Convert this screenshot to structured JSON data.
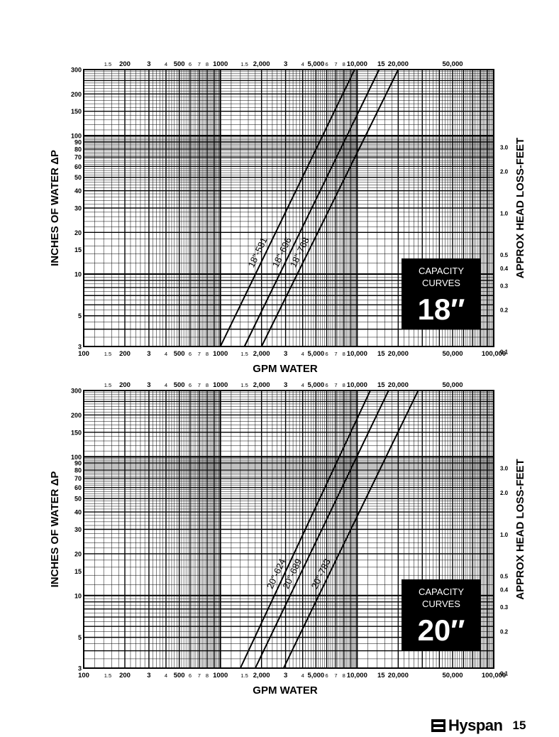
{
  "chart_data": [
    {
      "type": "line",
      "x_scale": "log",
      "y_scale": "log",
      "xlim": [
        100,
        100000
      ],
      "ylim": [
        3,
        300
      ],
      "xlabel": "GPM WATER",
      "ylabel": "INCHES OF WATER ΔP",
      "ylabel_right": "APPROX HEAD LOSS-FEET",
      "grid": true,
      "x_ticks": [
        {
          "v": 100,
          "t": "100"
        },
        {
          "v": 150,
          "t": "1.5"
        },
        {
          "v": 200,
          "t": "200"
        },
        {
          "v": 300,
          "t": "3"
        },
        {
          "v": 400,
          "t": "4"
        },
        {
          "v": 500,
          "t": "500"
        },
        {
          "v": 600,
          "t": "6"
        },
        {
          "v": 700,
          "t": "7"
        },
        {
          "v": 800,
          "t": "8"
        },
        {
          "v": 1000,
          "t": "1000"
        },
        {
          "v": 1500,
          "t": "1.5"
        },
        {
          "v": 2000,
          "t": "2,000"
        },
        {
          "v": 3000,
          "t": "3"
        },
        {
          "v": 4000,
          "t": "4"
        },
        {
          "v": 5000,
          "t": "5,000"
        },
        {
          "v": 6000,
          "t": "6"
        },
        {
          "v": 7000,
          "t": "7"
        },
        {
          "v": 8000,
          "t": "8"
        },
        {
          "v": 10000,
          "t": "10,000"
        },
        {
          "v": 15000,
          "t": "15"
        },
        {
          "v": 20000,
          "t": "20,000"
        },
        {
          "v": 50000,
          "t": "50,000"
        },
        {
          "v": 100000,
          "t": "100,000"
        }
      ],
      "x_ticks_top": [
        {
          "v": 150,
          "t": "1.5"
        },
        {
          "v": 200,
          "t": "200"
        },
        {
          "v": 300,
          "t": "3"
        },
        {
          "v": 400,
          "t": "4"
        },
        {
          "v": 500,
          "t": "500"
        },
        {
          "v": 600,
          "t": "6"
        },
        {
          "v": 700,
          "t": "7"
        },
        {
          "v": 800,
          "t": "8"
        },
        {
          "v": 1000,
          "t": "1000"
        },
        {
          "v": 1500,
          "t": "1.5"
        },
        {
          "v": 2000,
          "t": "2,000"
        },
        {
          "v": 3000,
          "t": "3"
        },
        {
          "v": 4000,
          "t": "4"
        },
        {
          "v": 5000,
          "t": "5,000"
        },
        {
          "v": 6000,
          "t": "6"
        },
        {
          "v": 7000,
          "t": "7"
        },
        {
          "v": 8000,
          "t": "8"
        },
        {
          "v": 10000,
          "t": "10,000"
        },
        {
          "v": 15000,
          "t": "15"
        },
        {
          "v": 20000,
          "t": "20,000"
        },
        {
          "v": 50000,
          "t": "50,000"
        }
      ],
      "y_ticks": [
        {
          "v": 3,
          "t": "3"
        },
        {
          "v": 5,
          "t": "5"
        },
        {
          "v": 10,
          "t": "10"
        },
        {
          "v": 15,
          "t": "15"
        },
        {
          "v": 20,
          "t": "20"
        },
        {
          "v": 30,
          "t": "30"
        },
        {
          "v": 40,
          "t": "40"
        },
        {
          "v": 50,
          "t": "50"
        },
        {
          "v": 60,
          "t": "60"
        },
        {
          "v": 70,
          "t": "70"
        },
        {
          "v": 80,
          "t": "80"
        },
        {
          "v": 90,
          "t": "90"
        },
        {
          "v": 100,
          "t": "100"
        },
        {
          "v": 150,
          "t": "150"
        },
        {
          "v": 200,
          "t": "200"
        },
        {
          "v": 300,
          "t": "300"
        }
      ],
      "y_ticks_right": [
        {
          "v": 2.77,
          "t": "0.1"
        },
        {
          "v": 5.54,
          "t": "0.2"
        },
        {
          "v": 8.3,
          "t": "0.3"
        },
        {
          "v": 11.07,
          "t": "0.4"
        },
        {
          "v": 13.84,
          "t": "0.5"
        },
        {
          "v": 27.7,
          "t": "1.0"
        },
        {
          "v": 55.4,
          "t": "2.0"
        },
        {
          "v": 83,
          "t": "3.0"
        }
      ],
      "series": [
        {
          "name": "18\"-581",
          "x": [
            1000,
            9600
          ],
          "y": [
            3,
            300
          ]
        },
        {
          "name": "18\"-696",
          "x": [
            1500,
            14500
          ],
          "y": [
            3,
            300
          ]
        },
        {
          "name": "18\"-768",
          "x": [
            2000,
            20000
          ],
          "y": [
            3,
            300
          ]
        }
      ],
      "badge": {
        "line1": "CAPACITY",
        "line2": "CURVES",
        "size": "18″"
      }
    },
    {
      "type": "line",
      "x_scale": "log",
      "y_scale": "log",
      "xlim": [
        100,
        100000
      ],
      "ylim": [
        3,
        300
      ],
      "xlabel": "GPM WATER",
      "ylabel": "INCHES OF WATER ΔP",
      "ylabel_right": "APPROX HEAD LOSS-FEET",
      "grid": true,
      "x_ticks": [
        {
          "v": 100,
          "t": "100"
        },
        {
          "v": 150,
          "t": "1.5"
        },
        {
          "v": 200,
          "t": "200"
        },
        {
          "v": 300,
          "t": "3"
        },
        {
          "v": 400,
          "t": "4"
        },
        {
          "v": 500,
          "t": "500"
        },
        {
          "v": 600,
          "t": "6"
        },
        {
          "v": 700,
          "t": "7"
        },
        {
          "v": 800,
          "t": "8"
        },
        {
          "v": 1000,
          "t": "1000"
        },
        {
          "v": 1500,
          "t": "1.5"
        },
        {
          "v": 2000,
          "t": "2,000"
        },
        {
          "v": 3000,
          "t": "3"
        },
        {
          "v": 4000,
          "t": "4"
        },
        {
          "v": 5000,
          "t": "5,000"
        },
        {
          "v": 6000,
          "t": "6"
        },
        {
          "v": 7000,
          "t": "7"
        },
        {
          "v": 8000,
          "t": "8"
        },
        {
          "v": 10000,
          "t": "10,000"
        },
        {
          "v": 15000,
          "t": "15"
        },
        {
          "v": 20000,
          "t": "20,000"
        },
        {
          "v": 50000,
          "t": "50,000"
        },
        {
          "v": 100000,
          "t": "100,000"
        }
      ],
      "x_ticks_top": [
        {
          "v": 150,
          "t": "1.5"
        },
        {
          "v": 200,
          "t": "200"
        },
        {
          "v": 300,
          "t": "3"
        },
        {
          "v": 400,
          "t": "4"
        },
        {
          "v": 500,
          "t": "500"
        },
        {
          "v": 600,
          "t": "6"
        },
        {
          "v": 700,
          "t": "7"
        },
        {
          "v": 800,
          "t": "8"
        },
        {
          "v": 1000,
          "t": "1000"
        },
        {
          "v": 1500,
          "t": "1.5"
        },
        {
          "v": 2000,
          "t": "2,000"
        },
        {
          "v": 3000,
          "t": "3"
        },
        {
          "v": 4000,
          "t": "4"
        },
        {
          "v": 5000,
          "t": "5,000"
        },
        {
          "v": 6000,
          "t": "6"
        },
        {
          "v": 7000,
          "t": "7"
        },
        {
          "v": 8000,
          "t": "8"
        },
        {
          "v": 10000,
          "t": "10,000"
        },
        {
          "v": 15000,
          "t": "15"
        },
        {
          "v": 20000,
          "t": "20,000"
        },
        {
          "v": 50000,
          "t": "50,000"
        }
      ],
      "y_ticks": [
        {
          "v": 3,
          "t": "3"
        },
        {
          "v": 5,
          "t": "5"
        },
        {
          "v": 10,
          "t": "10"
        },
        {
          "v": 15,
          "t": "15"
        },
        {
          "v": 20,
          "t": "20"
        },
        {
          "v": 30,
          "t": "30"
        },
        {
          "v": 40,
          "t": "40"
        },
        {
          "v": 50,
          "t": "50"
        },
        {
          "v": 60,
          "t": "60"
        },
        {
          "v": 70,
          "t": "70"
        },
        {
          "v": 80,
          "t": "80"
        },
        {
          "v": 90,
          "t": "90"
        },
        {
          "v": 100,
          "t": "100"
        },
        {
          "v": 150,
          "t": "150"
        },
        {
          "v": 200,
          "t": "200"
        },
        {
          "v": 300,
          "t": "300"
        }
      ],
      "y_ticks_right": [
        {
          "v": 2.77,
          "t": "0.1"
        },
        {
          "v": 5.54,
          "t": "0.2"
        },
        {
          "v": 8.3,
          "t": "0.3"
        },
        {
          "v": 11.07,
          "t": "0.4"
        },
        {
          "v": 13.84,
          "t": "0.5"
        },
        {
          "v": 27.7,
          "t": "1.0"
        },
        {
          "v": 55.4,
          "t": "2.0"
        },
        {
          "v": 83,
          "t": "3.0"
        }
      ],
      "series": [
        {
          "name": "20\"-624",
          "x": [
            1400,
            12500
          ],
          "y": [
            3,
            300
          ]
        },
        {
          "name": "20\"-689",
          "x": [
            1800,
            17000
          ],
          "y": [
            3,
            300
          ]
        },
        {
          "name": "20\"-783",
          "x": [
            2900,
            28000
          ],
          "y": [
            3,
            300
          ]
        }
      ],
      "badge": {
        "line1": "CAPACITY",
        "line2": "CURVES",
        "size": "20″"
      }
    }
  ],
  "footer": {
    "logo_icon": "hyspan-logo-icon",
    "brand": "Hyspan",
    "page_number": "15"
  }
}
